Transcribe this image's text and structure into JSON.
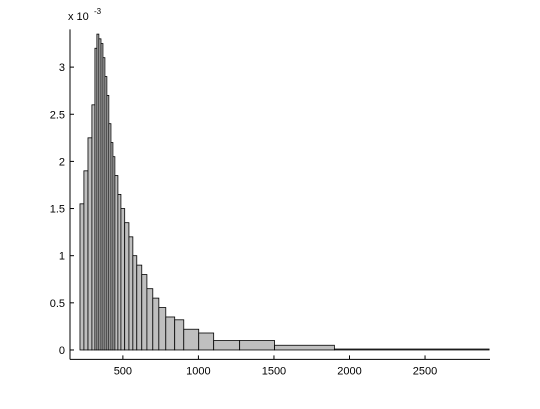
{
  "chart_data": {
    "type": "histogram",
    "y_multiplier": "x 10",
    "y_multiplier_exponent": "-3",
    "bins": [
      216,
      242,
      269,
      295,
      315,
      328,
      341,
      355,
      368,
      381,
      394,
      407,
      421,
      434,
      447,
      467,
      487,
      512,
      540,
      566,
      592,
      625,
      659,
      698,
      738,
      784,
      843,
      903,
      1002,
      1101,
      1273,
      1504,
      1900,
      2924
    ],
    "counts": [
      1.55,
      1.9,
      2.25,
      2.6,
      3.2,
      3.35,
      3.3,
      3.25,
      3.1,
      2.9,
      2.7,
      2.4,
      2.2,
      2.05,
      1.85,
      1.65,
      1.5,
      1.35,
      1.2,
      1.0,
      0.9,
      0.8,
      0.65,
      0.55,
      0.45,
      0.35,
      0.32,
      0.22,
      0.18,
      0.1,
      0.1,
      0.05,
      0.01
    ],
    "color": "#bfbfbf",
    "edge_color": "#000000",
    "xlim": [
      150,
      2930
    ],
    "ylim": [
      -0.1,
      3.4
    ],
    "xticks": [
      500,
      1000,
      1500,
      2000,
      2500
    ],
    "yticks": [
      0,
      0.5,
      1,
      1.5,
      2,
      2.5,
      3
    ],
    "grid": false
  }
}
